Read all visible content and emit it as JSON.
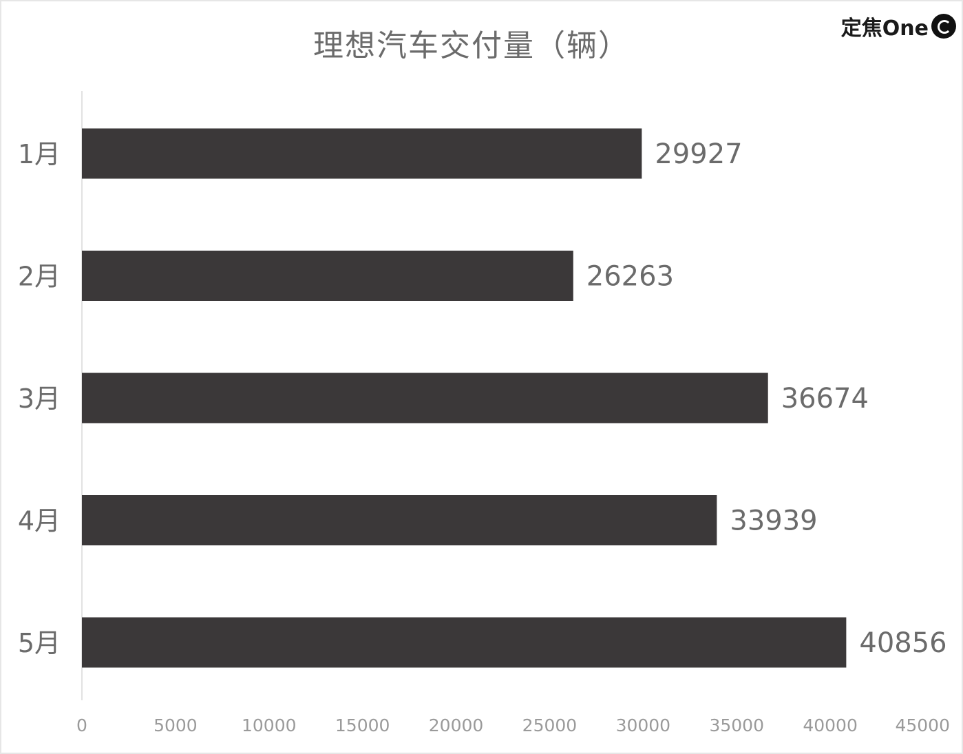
{
  "watermark": {
    "text": "定焦One",
    "logo_icon": "camera-lens-icon"
  },
  "chart_data": {
    "type": "bar",
    "orientation": "horizontal",
    "title": "理想汽车交付量（辆）",
    "categories": [
      "1月",
      "2月",
      "3月",
      "4月",
      "5月"
    ],
    "values": [
      29927,
      26263,
      36674,
      33939,
      40856
    ],
    "value_labels": [
      "29927",
      "26263",
      "36674",
      "33939",
      "40856"
    ],
    "xlim": [
      0,
      45000
    ],
    "xticks": [
      0,
      5000,
      10000,
      15000,
      20000,
      25000,
      30000,
      35000,
      40000,
      45000
    ],
    "xtick_labels": [
      "0",
      "5000",
      "10000",
      "15000",
      "20000",
      "25000",
      "30000",
      "35000",
      "40000",
      "45000"
    ],
    "xlabel": "",
    "ylabel": "",
    "grid": false,
    "legend": "none",
    "bar_color": "#3b3839",
    "text_color": "#6b6b6b"
  }
}
